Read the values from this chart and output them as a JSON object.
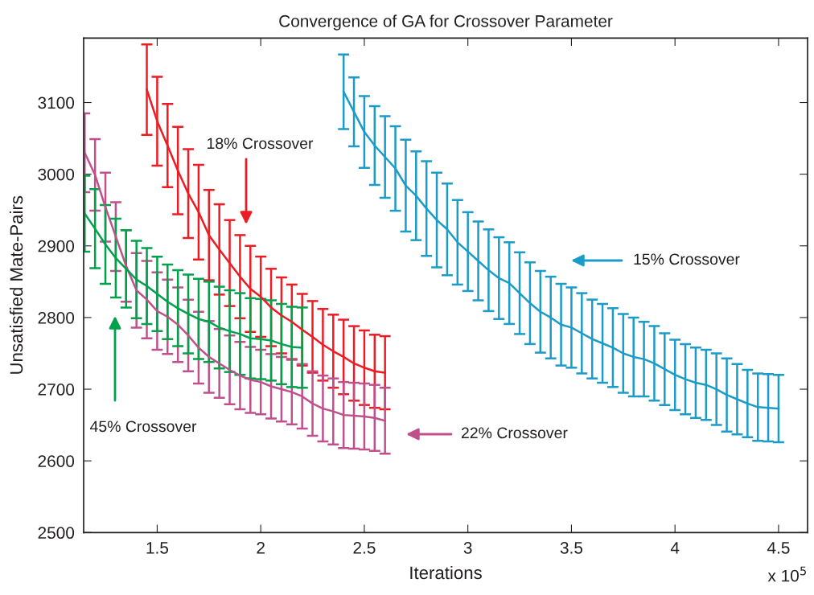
{
  "chart_data": {
    "type": "line",
    "title": "Convergence of GA for Crossover Parameter",
    "xlabel": "Iterations",
    "ylabel": "Unsatisfied Mate-Pairs",
    "xlim": [
      1.145,
      4.64
    ],
    "ylim": [
      2500,
      3190
    ],
    "xticks": [
      1.5,
      2,
      2.5,
      3,
      3.5,
      4,
      4.5
    ],
    "yticks": [
      2500,
      2600,
      2700,
      2800,
      2900,
      3000,
      3100
    ],
    "grid": false,
    "marker": "none",
    "line_style": "solid",
    "series": [
      {
        "color": "#1a9bc8",
        "x": [
          2.4,
          2.45,
          2.5,
          2.55,
          2.6,
          2.65,
          2.7,
          2.75,
          2.8,
          2.85,
          2.9,
          2.95,
          3.0,
          3.05,
          3.1,
          3.15,
          3.2,
          3.25,
          3.3,
          3.35,
          3.4,
          3.45,
          3.5,
          3.55,
          3.6,
          3.65,
          3.7,
          3.75,
          3.8,
          3.85,
          3.9,
          3.95,
          4.0,
          4.05,
          4.1,
          4.15,
          4.2,
          4.25,
          4.3,
          4.35,
          4.4,
          4.45,
          4.5
        ],
        "values": [
          3115,
          3087,
          3059,
          3040,
          3024,
          3008,
          2984,
          2970,
          2952,
          2936,
          2923,
          2905,
          2892,
          2879,
          2866,
          2855,
          2848,
          2834,
          2820,
          2808,
          2800,
          2790,
          2786,
          2778,
          2770,
          2764,
          2758,
          2750,
          2745,
          2742,
          2736,
          2728,
          2720,
          2714,
          2709,
          2706,
          2700,
          2692,
          2686,
          2680,
          2675,
          2674,
          2673
        ],
        "errors": [
          52,
          48,
          50,
          55,
          57,
          59,
          64,
          62,
          66,
          66,
          64,
          59,
          55,
          55,
          57,
          57,
          57,
          57,
          57,
          57,
          57,
          57,
          56,
          56,
          55,
          55,
          55,
          55,
          55,
          52,
          52,
          50,
          49,
          49,
          49,
          49,
          50,
          51,
          49,
          47,
          47,
          47,
          47
        ]
      },
      {
        "color": "#ed1c24",
        "x": [
          1.45,
          1.5,
          1.55,
          1.6,
          1.65,
          1.7,
          1.75,
          1.8,
          1.85,
          1.9,
          1.95,
          2.0,
          2.05,
          2.1,
          2.15,
          2.2,
          2.25,
          2.3,
          2.35,
          2.4,
          2.45,
          2.5,
          2.55,
          2.6
        ],
        "values": [
          3118,
          3074,
          3040,
          3005,
          2973,
          2947,
          2915,
          2895,
          2876,
          2857,
          2840,
          2829,
          2814,
          2803,
          2794,
          2783,
          2773,
          2762,
          2753,
          2745,
          2736,
          2730,
          2725,
          2723
        ],
        "errors": [
          63,
          62,
          58,
          61,
          62,
          66,
          63,
          63,
          60,
          58,
          60,
          56,
          54,
          53,
          52,
          50,
          50,
          50,
          51,
          52,
          52,
          52,
          51,
          51
        ]
      },
      {
        "color": "#c0508c",
        "x": [
          1.15,
          1.2,
          1.25,
          1.3,
          1.35,
          1.4,
          1.45,
          1.5,
          1.55,
          1.6,
          1.65,
          1.7,
          1.75,
          1.8,
          1.85,
          1.9,
          1.95,
          2.0,
          2.05,
          2.1,
          2.15,
          2.2,
          2.25,
          2.3,
          2.35,
          2.4,
          2.45,
          2.5,
          2.55,
          2.6
        ],
        "values": [
          3030,
          2999,
          2954,
          2913,
          2872,
          2838,
          2825,
          2809,
          2801,
          2790,
          2775,
          2758,
          2745,
          2736,
          2727,
          2719,
          2713,
          2710,
          2704,
          2700,
          2696,
          2690,
          2680,
          2673,
          2669,
          2664,
          2663,
          2662,
          2660,
          2656
        ],
        "errors": [
          55,
          50,
          48,
          48,
          50,
          52,
          54,
          54,
          52,
          52,
          50,
          50,
          50,
          48,
          48,
          47,
          46,
          45,
          45,
          45,
          45,
          45,
          45,
          46,
          46,
          46,
          46,
          46,
          46,
          46
        ]
      },
      {
        "color": "#00a14b",
        "x": [
          1.15,
          1.2,
          1.25,
          1.3,
          1.35,
          1.4,
          1.45,
          1.5,
          1.55,
          1.6,
          1.65,
          1.7,
          1.75,
          1.8,
          1.85,
          1.9,
          1.95,
          2.0,
          2.05,
          2.1,
          2.15,
          2.2
        ],
        "values": [
          2945,
          2924,
          2902,
          2883,
          2868,
          2853,
          2844,
          2833,
          2822,
          2813,
          2805,
          2798,
          2794,
          2786,
          2781,
          2777,
          2771,
          2770,
          2768,
          2763,
          2759,
          2758
        ],
        "errors": [
          53,
          55,
          55,
          55,
          54,
          54,
          53,
          52,
          52,
          53,
          55,
          56,
          56,
          57,
          57,
          57,
          56,
          56,
          56,
          56,
          56,
          56
        ]
      }
    ],
    "annotations": [
      "15% Crossover",
      "18% Crossover",
      "22% Crossover",
      "45% Crossover",
      "x 10$^{5}$"
    ]
  }
}
